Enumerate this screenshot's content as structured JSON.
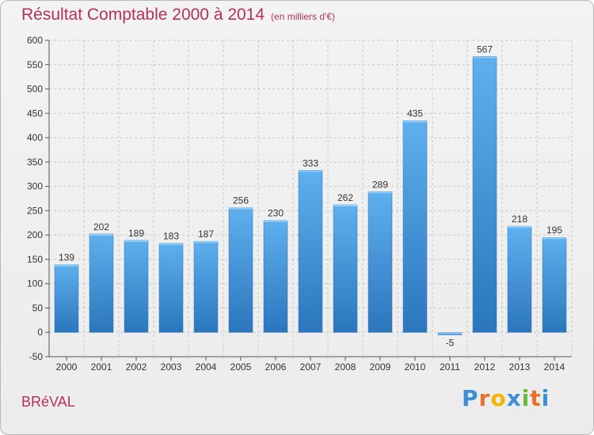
{
  "header": {
    "title": "Résultat Comptable 2000 à 2014",
    "subtitle": "(en milliers d'€)"
  },
  "footer": {
    "commune": "BRéVAL",
    "logo_letters": [
      "P",
      "r",
      "o",
      "x",
      "i",
      "t",
      "i"
    ],
    "logo_colors": [
      "#3a8fd8",
      "#e8702a",
      "#f2b400",
      "#3a8fd8",
      "#6bb83a",
      "#e8702a",
      "#3a8fd8"
    ]
  },
  "colors": {
    "bar": "#3a8fd8",
    "bar_light": "#5fb0ee",
    "bar_dark": "#2b76bd",
    "grid": "#c8c8c8",
    "title": "#b5305a"
  },
  "chart_data": {
    "type": "bar",
    "title": "Résultat Comptable 2000 à 2014",
    "subtitle": "(en milliers d'€)",
    "xlabel": "",
    "ylabel": "",
    "categories": [
      "2000",
      "2001",
      "2002",
      "2003",
      "2004",
      "2005",
      "2006",
      "2007",
      "2008",
      "2009",
      "2010",
      "2011",
      "2012",
      "2013",
      "2014"
    ],
    "values": [
      139,
      202,
      189,
      183,
      187,
      256,
      230,
      333,
      262,
      289,
      435,
      -5,
      567,
      218,
      195
    ],
    "ylim": [
      -50,
      600
    ],
    "yticks": [
      -50,
      0,
      50,
      100,
      150,
      200,
      250,
      300,
      350,
      400,
      450,
      500,
      550,
      600
    ],
    "grid": true,
    "legend": "none"
  }
}
